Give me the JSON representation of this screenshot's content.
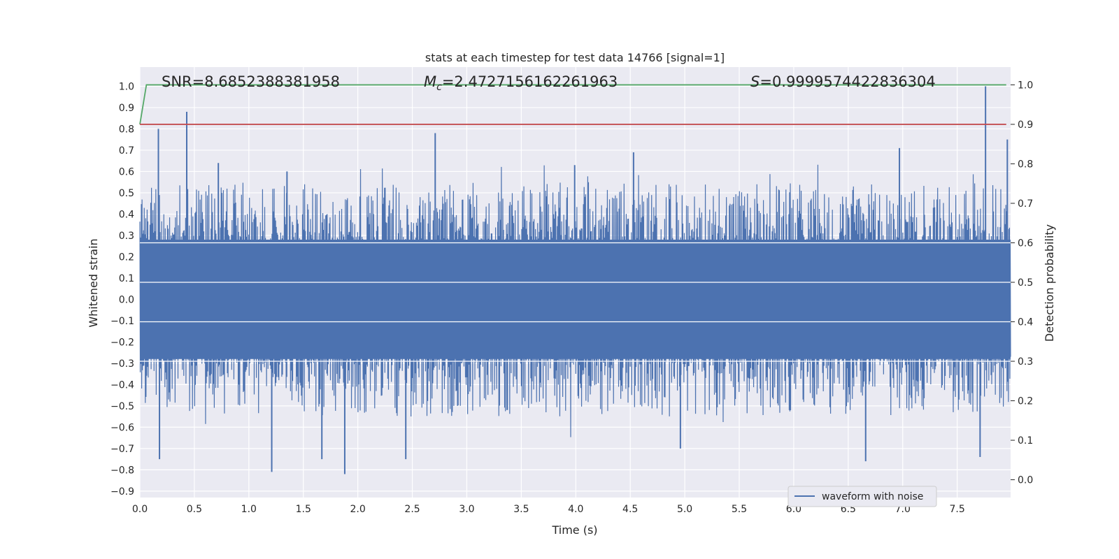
{
  "chart_data": {
    "type": "line",
    "title": "stats at each timestep for test data 14766 [signal=1]",
    "xlabel": "Time (s)",
    "ylabel": "Whitened strain",
    "y2label": "Detection probability",
    "xlim": [
      0.0,
      7.99
    ],
    "ylim": [
      -0.93,
      1.09
    ],
    "y2lim": [
      -0.045,
      1.045
    ],
    "xticks": [
      "0.0",
      "0.5",
      "1.0",
      "1.5",
      "2.0",
      "2.5",
      "3.0",
      "3.5",
      "4.0",
      "4.5",
      "5.0",
      "5.5",
      "6.0",
      "6.5",
      "7.0",
      "7.5"
    ],
    "xtick_values": [
      0.0,
      0.5,
      1.0,
      1.5,
      2.0,
      2.5,
      3.0,
      3.5,
      4.0,
      4.5,
      5.0,
      5.5,
      6.0,
      6.5,
      7.0,
      7.5
    ],
    "yticks": [
      "−0.9",
      "−0.8",
      "−0.7",
      "−0.6",
      "−0.5",
      "−0.4",
      "−0.3",
      "−0.2",
      "−0.1",
      "0.0",
      "0.1",
      "0.2",
      "0.3",
      "0.4",
      "0.5",
      "0.6",
      "0.7",
      "0.8",
      "0.9",
      "1.0"
    ],
    "ytick_values": [
      -0.9,
      -0.8,
      -0.7,
      -0.6,
      -0.5,
      -0.4,
      -0.3,
      -0.2,
      -0.1,
      0.0,
      0.1,
      0.2,
      0.3,
      0.4,
      0.5,
      0.6,
      0.7,
      0.8,
      0.9,
      1.0
    ],
    "y2ticks": [
      "0.0",
      "0.1",
      "0.2",
      "0.3",
      "0.4",
      "0.5",
      "0.6",
      "0.7",
      "0.8",
      "0.9",
      "1.0"
    ],
    "y2tick_values": [
      0.0,
      0.1,
      0.2,
      0.3,
      0.4,
      0.5,
      0.6,
      0.7,
      0.8,
      0.9,
      1.0
    ],
    "grid": true,
    "legend_placement": "lower-right",
    "annotations": {
      "snr": "SNR=8.6852388381958",
      "mc_symbol": "M",
      "mc_subscript": "c",
      "mc_value": "=2.4727156162261963",
      "s_symbol": "S",
      "s_value": "=0.9999574422836304"
    },
    "series": [
      {
        "name": "waveform with noise",
        "axis": "left",
        "color": "#4c72b0",
        "description_values": "dense whitened noise, |y| mostly within ±0.5",
        "envelope_upper_peaks": [
          {
            "x": 0.17,
            "y": 0.8
          },
          {
            "x": 0.43,
            "y": 0.88
          },
          {
            "x": 0.72,
            "y": 0.64
          },
          {
            "x": 1.35,
            "y": 0.6
          },
          {
            "x": 2.71,
            "y": 0.78
          },
          {
            "x": 3.99,
            "y": 0.63
          },
          {
            "x": 4.53,
            "y": 0.69
          },
          {
            "x": 6.97,
            "y": 0.71
          },
          {
            "x": 7.76,
            "y": 1.0
          },
          {
            "x": 7.96,
            "y": 0.75
          }
        ],
        "envelope_lower_peaks": [
          {
            "x": 0.18,
            "y": -0.75
          },
          {
            "x": 1.21,
            "y": -0.81
          },
          {
            "x": 1.67,
            "y": -0.75
          },
          {
            "x": 1.88,
            "y": -0.82
          },
          {
            "x": 2.44,
            "y": -0.75
          },
          {
            "x": 4.96,
            "y": -0.7
          },
          {
            "x": 6.66,
            "y": -0.76
          },
          {
            "x": 7.71,
            "y": -0.74
          }
        ]
      },
      {
        "name": "",
        "axis": "right",
        "color": "#55a868",
        "x": [
          0.0,
          0.06,
          7.95
        ],
        "y": [
          0.9,
          1.0,
          1.0
        ]
      },
      {
        "name": "",
        "axis": "right",
        "color": "#c44e52",
        "x": [
          0.0,
          7.95
        ],
        "y": [
          0.9,
          0.9
        ]
      }
    ]
  },
  "colors": {
    "plot_background": "#eaeaf2",
    "grid": "#ffffff",
    "waveform": "#4c72b0",
    "probability": "#55a868",
    "threshold": "#c44e52"
  }
}
